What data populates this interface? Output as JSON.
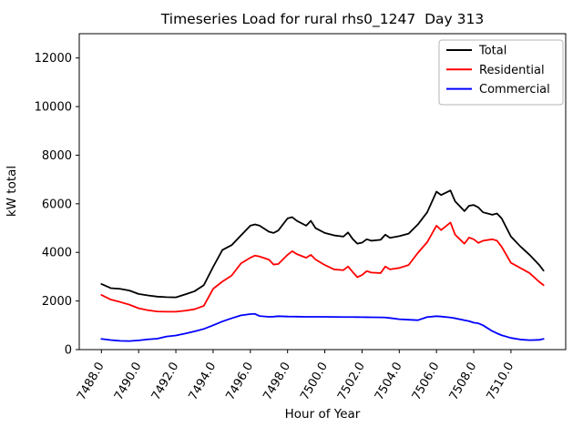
{
  "chart_data": {
    "type": "line",
    "title": "Timeseries Load for rural rhs0_1247  Day 313",
    "xlabel": "Hour of Year",
    "ylabel": "kW total",
    "xlim": [
      7486.81,
      7512.94
    ],
    "ylim": [
      0,
      13000
    ],
    "xticks": [
      7488.0,
      7490.0,
      7492.0,
      7494.0,
      7496.0,
      7498.0,
      7500.0,
      7502.0,
      7504.0,
      7506.0,
      7508.0,
      7510.0
    ],
    "yticks": [
      0,
      2000,
      4000,
      6000,
      8000,
      10000,
      12000
    ],
    "x_tick_rotation_deg": 60,
    "grid": false,
    "legend": {
      "position": "upper-right",
      "border_color": "#b4b4b4",
      "background": "#ffffff"
    },
    "x": [
      7488.0,
      7488.5,
      7489.0,
      7489.5,
      7490.0,
      7490.5,
      7491.0,
      7491.5,
      7492.0,
      7492.5,
      7493.0,
      7493.5,
      7494.0,
      7494.5,
      7495.0,
      7495.5,
      7496.0,
      7496.25,
      7496.5,
      7497.0,
      7497.25,
      7497.5,
      7498.0,
      7498.25,
      7498.5,
      7499.0,
      7499.25,
      7499.5,
      7500.0,
      7500.5,
      7501.0,
      7501.25,
      7501.5,
      7501.75,
      7502.0,
      7502.25,
      7502.5,
      7503.0,
      7503.25,
      7503.5,
      7504.0,
      7504.5,
      7505.0,
      7505.5,
      7506.0,
      7506.25,
      7506.75,
      7507.0,
      7507.5,
      7507.75,
      7508.0,
      7508.25,
      7508.5,
      7509.0,
      7509.25,
      7509.5,
      7510.0,
      7510.5,
      7511.0,
      7511.5,
      7511.75
    ],
    "series": [
      {
        "name": "Total",
        "color": "#000000",
        "values": [
          2700,
          2530,
          2500,
          2430,
          2290,
          2230,
          2180,
          2160,
          2150,
          2270,
          2400,
          2650,
          3400,
          4100,
          4300,
          4700,
          5100,
          5150,
          5100,
          4850,
          4800,
          4900,
          5400,
          5450,
          5300,
          5100,
          5300,
          5000,
          4800,
          4700,
          4650,
          4820,
          4550,
          4360,
          4400,
          4540,
          4480,
          4520,
          4730,
          4600,
          4670,
          4770,
          5150,
          5650,
          6500,
          6360,
          6550,
          6100,
          5700,
          5920,
          5950,
          5850,
          5650,
          5550,
          5600,
          5400,
          4650,
          4250,
          3900,
          3500,
          3250
        ]
      },
      {
        "name": "Residential",
        "color": "#ff0000",
        "values": [
          2250,
          2060,
          1960,
          1850,
          1700,
          1620,
          1570,
          1560,
          1560,
          1600,
          1660,
          1800,
          2500,
          2800,
          3050,
          3550,
          3780,
          3870,
          3830,
          3700,
          3500,
          3520,
          3900,
          4050,
          3930,
          3780,
          3900,
          3710,
          3480,
          3300,
          3270,
          3420,
          3190,
          2980,
          3070,
          3230,
          3170,
          3150,
          3420,
          3300,
          3360,
          3480,
          3980,
          4420,
          5100,
          4920,
          5230,
          4730,
          4360,
          4610,
          4540,
          4390,
          4480,
          4540,
          4480,
          4230,
          3570,
          3360,
          3150,
          2800,
          2650
        ]
      },
      {
        "name": "Commercial",
        "color": "#0000ff",
        "values": [
          440,
          395,
          360,
          350,
          380,
          420,
          450,
          540,
          580,
          660,
          750,
          850,
          1000,
          1160,
          1290,
          1410,
          1460,
          1470,
          1380,
          1350,
          1355,
          1375,
          1360,
          1358,
          1355,
          1350,
          1350,
          1350,
          1350,
          1345,
          1340,
          1340,
          1340,
          1338,
          1335,
          1333,
          1330,
          1325,
          1320,
          1300,
          1250,
          1230,
          1210,
          1340,
          1375,
          1360,
          1320,
          1290,
          1210,
          1170,
          1110,
          1080,
          1000,
          760,
          670,
          590,
          480,
          415,
          390,
          400,
          440
        ]
      }
    ]
  }
}
